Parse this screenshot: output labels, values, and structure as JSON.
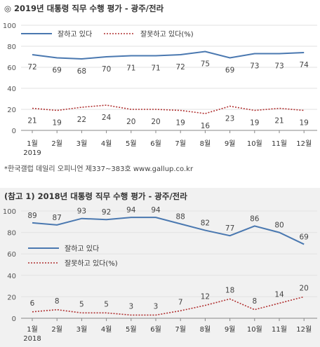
{
  "top_title": "◎  2019년 대통령 직무 수행 평가 - 광주/전라",
  "source": "*한국갤럽 데일리 오피니언 제337~383호 www.gallup.co.kr",
  "bottom_title": "(참고 1) 2018년 대통령 직무 수행 평가 - 광주/전라",
  "colors": {
    "positive": "#4a78b0",
    "negative": "#b03030"
  },
  "chart_data": [
    {
      "type": "line",
      "title": "2019년 대통령 직무 수행 평가 - 광주/전라",
      "year_label": "2019",
      "categories": [
        "1월",
        "2월",
        "3월",
        "4월",
        "5월",
        "6월",
        "7월",
        "8월",
        "9월",
        "10월",
        "11월",
        "12월"
      ],
      "series": [
        {
          "name": "잘하고 있다",
          "values": [
            72,
            69,
            68,
            70,
            71,
            71,
            72,
            75,
            69,
            73,
            73,
            74
          ]
        },
        {
          "name": "잘못하고 있다(%)",
          "values": [
            21,
            19,
            22,
            24,
            20,
            20,
            19,
            16,
            23,
            19,
            21,
            19
          ]
        }
      ],
      "ylim": [
        0,
        100
      ],
      "yticks": [
        0,
        20,
        40,
        60,
        80,
        100
      ],
      "grid": true,
      "legend": "top-left"
    },
    {
      "type": "line",
      "title": "2018년 대통령 직무 수행 평가 - 광주/전라",
      "year_label": "2018",
      "categories": [
        "1월",
        "2월",
        "3월",
        "4월",
        "5월",
        "6월",
        "7월",
        "8월",
        "9월",
        "10월",
        "11월",
        "12월"
      ],
      "series": [
        {
          "name": "잘하고 있다",
          "values": [
            89,
            87,
            93,
            92,
            94,
            94,
            88,
            82,
            77,
            86,
            80,
            69
          ]
        },
        {
          "name": "잘못하고 있다(%)",
          "values": [
            6,
            8,
            5,
            5,
            3,
            3,
            7,
            12,
            18,
            8,
            14,
            20
          ]
        }
      ],
      "ylim": [
        0,
        100
      ],
      "yticks": [
        0,
        20,
        40,
        60,
        80,
        100
      ],
      "grid": true,
      "legend": "center-left"
    }
  ]
}
